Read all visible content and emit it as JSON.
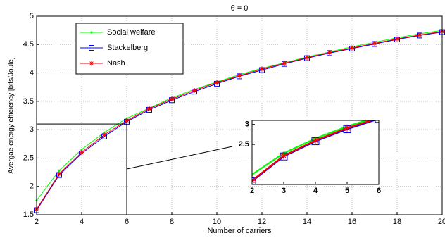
{
  "chart_data": [
    {
      "type": "line",
      "title": "θ = 0",
      "xlabel": "Number of carriers",
      "ylabel": "Avergae energy efficiency [bits/Joule]",
      "x": [
        2,
        3,
        4,
        5,
        6,
        7,
        8,
        9,
        10,
        11,
        12,
        13,
        14,
        15,
        16,
        17,
        18,
        19,
        20
      ],
      "series": [
        {
          "name": "Social welfare",
          "color": "#00ff00",
          "marker": "dot",
          "values": [
            1.75,
            2.28,
            2.65,
            2.95,
            3.2,
            3.38,
            3.56,
            3.71,
            3.84,
            3.97,
            4.08,
            4.18,
            4.28,
            4.37,
            4.46,
            4.54,
            4.62,
            4.69,
            4.75
          ]
        },
        {
          "name": "Stackelberg",
          "color": "#0000ff",
          "marker": "square",
          "values": [
            1.58,
            2.2,
            2.58,
            2.88,
            3.14,
            3.35,
            3.52,
            3.67,
            3.81,
            3.94,
            4.05,
            4.16,
            4.26,
            4.35,
            4.43,
            4.51,
            4.59,
            4.66,
            4.72
          ]
        },
        {
          "name": "Nash",
          "color": "#ff0000",
          "marker": "star",
          "values": [
            1.6,
            2.22,
            2.6,
            2.91,
            3.16,
            3.37,
            3.54,
            3.69,
            3.83,
            3.95,
            4.07,
            4.17,
            4.27,
            4.36,
            4.44,
            4.52,
            4.6,
            4.67,
            4.73
          ]
        }
      ],
      "xlim": [
        2,
        20
      ],
      "ylim": [
        1.5,
        5
      ],
      "xticks": [
        2,
        4,
        6,
        8,
        10,
        12,
        14,
        16,
        18,
        20
      ],
      "yticks": [
        1.5,
        2,
        2.5,
        3,
        3.5,
        4,
        4.5,
        5
      ],
      "grid": true,
      "legend": "northwest"
    },
    {
      "type": "line",
      "xlim": [
        2,
        6
      ],
      "ylim": [
        1.5,
        3.1
      ],
      "xticks": [
        2,
        3,
        4,
        5,
        6
      ],
      "yticks": [
        2.5,
        3
      ]
    }
  ]
}
